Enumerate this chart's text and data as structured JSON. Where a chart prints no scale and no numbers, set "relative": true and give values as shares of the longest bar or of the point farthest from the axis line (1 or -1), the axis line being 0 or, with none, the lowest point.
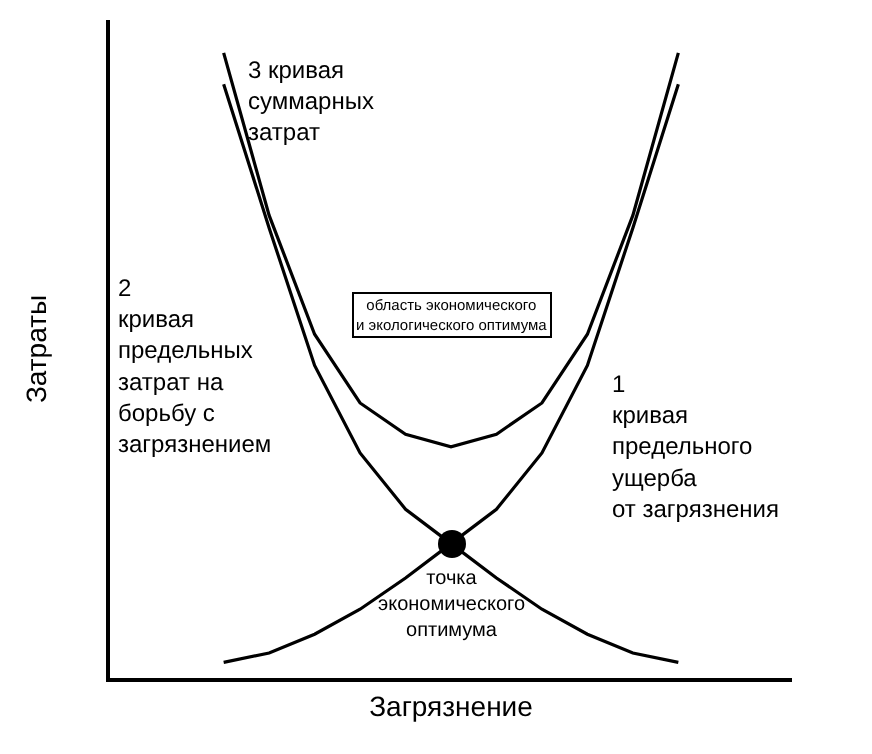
{
  "chart_data": {
    "type": "line",
    "relative": true,
    "xlabel": "Загрязнение",
    "ylabel": "Затраты",
    "legend": false,
    "grid": false,
    "marker": "none",
    "line_style": "solid",
    "categories": [
      null,
      null,
      null,
      null,
      null,
      null,
      null,
      null,
      null,
      null,
      null,
      null,
      null,
      null,
      null
    ],
    "series": [
      {
        "name": "1\nкривая\nпредельного\nущерба\nот загрязнения",
        "color": "#000000",
        "values": [
          null,
          null,
          0.025,
          0.04,
          0.07,
          0.11,
          0.16,
          0.215,
          0.27,
          0.36,
          0.5,
          0.72,
          0.95,
          null,
          null
        ]
      },
      {
        "name": "2\nкривая\nпредельных\nзатрат на\nборьбу с\nзагрязнением",
        "color": "#000000",
        "values": [
          null,
          null,
          0.95,
          0.72,
          0.5,
          0.36,
          0.27,
          0.215,
          0.16,
          0.11,
          0.07,
          0.04,
          0.025,
          null,
          null
        ]
      },
      {
        "name": "3 кривая\nсуммарных\nзатрат",
        "color": "#000000",
        "values": [
          null,
          null,
          1.0,
          0.74,
          0.55,
          0.44,
          0.39,
          0.37,
          0.39,
          0.44,
          0.55,
          0.74,
          1.0,
          null,
          null
        ]
      }
    ],
    "annotations": [
      "точка\nэкономического\nоптимума",
      "область экономического\nи экологического оптимума"
    ]
  }
}
